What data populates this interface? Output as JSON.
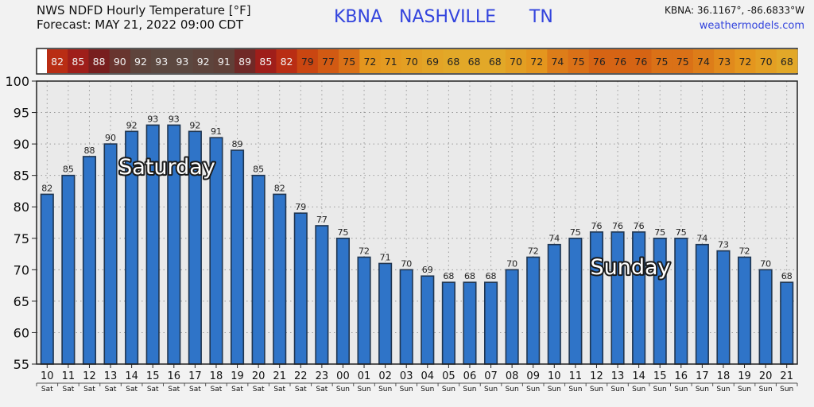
{
  "header": {
    "title_line1": "NWS NDFD Hourly Temperature [°F]",
    "title_line2": "Forecast: MAY 21, 2022 09:00 CDT",
    "station": "KBNA   NASHVILLE      TN",
    "coords": "KBNA: 36.1167°, -86.6833°W",
    "site": "weathermodels.com"
  },
  "chart_data": {
    "type": "bar",
    "title": "NWS NDFD Hourly Temperature [°F]",
    "ylim": [
      55,
      100
    ],
    "yticks": [
      55,
      60,
      65,
      70,
      75,
      80,
      85,
      90,
      95,
      100
    ],
    "categories": [
      "10",
      "11",
      "12",
      "13",
      "14",
      "15",
      "16",
      "17",
      "18",
      "19",
      "20",
      "21",
      "22",
      "23",
      "00",
      "01",
      "02",
      "03",
      "04",
      "05",
      "06",
      "07",
      "08",
      "09",
      "10",
      "11",
      "12",
      "13",
      "14",
      "15",
      "16",
      "17",
      "18",
      "19",
      "20",
      "21"
    ],
    "day_labels": [
      "Sat",
      "Sat",
      "Sat",
      "Sat",
      "Sat",
      "Sat",
      "Sat",
      "Sat",
      "Sat",
      "Sat",
      "Sat",
      "Sat",
      "Sat",
      "Sat",
      "Sun",
      "Sun",
      "Sun",
      "Sun",
      "Sun",
      "Sun",
      "Sun",
      "Sun",
      "Sun",
      "Sun",
      "Sun",
      "Sun",
      "Sun",
      "Sun",
      "Sun",
      "Sun",
      "Sun",
      "Sun",
      "Sun",
      "Sun",
      "Sun",
      "Sun"
    ],
    "values": [
      82,
      85,
      88,
      90,
      92,
      93,
      93,
      92,
      91,
      89,
      85,
      82,
      79,
      77,
      75,
      72,
      71,
      70,
      69,
      68,
      68,
      68,
      70,
      72,
      74,
      75,
      76,
      76,
      76,
      75,
      75,
      74,
      73,
      72,
      70,
      68
    ],
    "annotations": [
      "Saturday",
      "Sunday"
    ],
    "grid": true,
    "bar_color": "#2f74c8"
  }
}
